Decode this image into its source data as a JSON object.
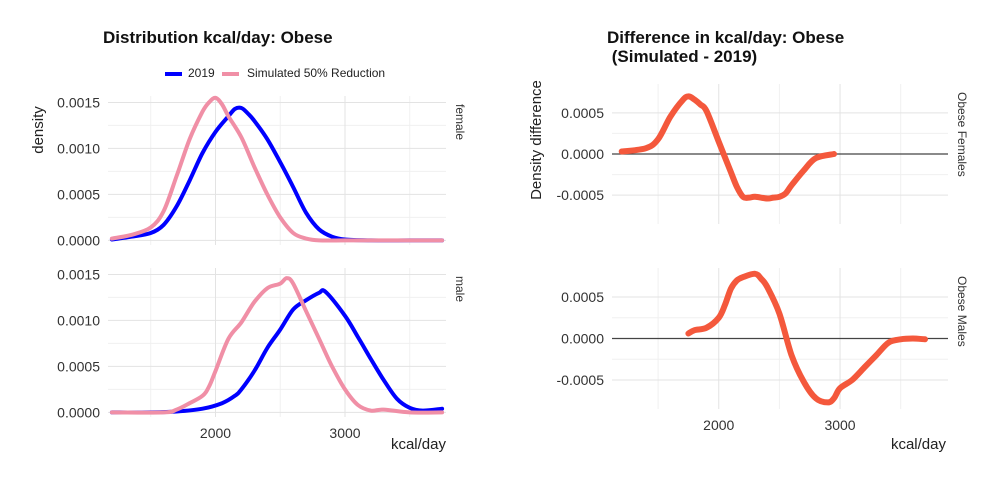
{
  "left": {
    "title": "Distribution kcal/day: Obese",
    "xlabel": "kcal/day",
    "ylabel": "density",
    "legend": [
      {
        "label": "2019",
        "color": "#0000ff"
      },
      {
        "label": "Simulated 50% Reduction",
        "color": "#f08fa6"
      }
    ]
  },
  "right": {
    "title_line1": "Difference in kcal/day: Obese",
    "title_line2": " (Simulated - 2019)",
    "xlabel": "kcal/day",
    "ylabel": "Density difference"
  },
  "chart_data": [
    {
      "type": "line",
      "title": "Distribution kcal/day: Obese",
      "xlabel": "kcal/day",
      "ylabel": "density",
      "xlim": [
        1170,
        3780
      ],
      "x_ticks": [
        2000,
        3000
      ],
      "facets": [
        {
          "label": "female",
          "ylim": [
            -5e-05,
            0.00157
          ],
          "y_ticks": [
            0,
            0.0005,
            0.001,
            0.0015
          ],
          "y_tick_labels": [
            "0.0000",
            "0.0005",
            "0.0010",
            "0.0015"
          ],
          "series": [
            {
              "name": "2019",
              "color": "#0000ff",
              "x": [
                1200,
                1350,
                1500,
                1600,
                1700,
                1800,
                1900,
                2000,
                2100,
                2150,
                2200,
                2250,
                2300,
                2400,
                2500,
                2600,
                2700,
                2800,
                2900,
                3000,
                3200,
                3500,
                3750
              ],
              "y": [
                1e-05,
                4e-05,
                8e-05,
                0.00017,
                0.00037,
                0.00065,
                0.00095,
                0.00118,
                0.00135,
                0.00143,
                0.00144,
                0.00138,
                0.0013,
                0.0011,
                0.00085,
                0.00058,
                0.0003,
                0.00012,
                4e-05,
                1e-05,
                0.0,
                0.0,
                0.0
              ]
            },
            {
              "name": "Simulated 50% Reduction",
              "color": "#f08fa6",
              "x": [
                1200,
                1350,
                1500,
                1600,
                1700,
                1800,
                1900,
                1950,
                2000,
                2050,
                2100,
                2200,
                2300,
                2400,
                2500,
                2600,
                2700,
                2800,
                3000,
                3200,
                3500,
                3750
              ],
              "y": [
                2e-05,
                6e-05,
                0.00014,
                0.00032,
                0.0007,
                0.0011,
                0.0014,
                0.0015,
                0.00155,
                0.00148,
                0.00135,
                0.00112,
                0.0008,
                0.0005,
                0.00025,
                8e-05,
                2e-05,
                0.0,
                0.0,
                0.0,
                0.0,
                0.0
              ]
            }
          ]
        },
        {
          "label": "male",
          "ylim": [
            -5e-05,
            0.00157
          ],
          "y_ticks": [
            0,
            0.0005,
            0.001,
            0.0015
          ],
          "y_tick_labels": [
            "0.0000",
            "0.0005",
            "0.0010",
            "0.0015"
          ],
          "series": [
            {
              "name": "2019",
              "color": "#0000ff",
              "x": [
                1200,
                1500,
                1700,
                1900,
                2050,
                2150,
                2200,
                2300,
                2400,
                2500,
                2600,
                2700,
                2800,
                2850,
                3000,
                3100,
                3200,
                3300,
                3400,
                3500,
                3600,
                3750
              ],
              "y": [
                0.0,
                0.0,
                1e-05,
                4e-05,
                0.0001,
                0.00018,
                0.00025,
                0.00045,
                0.0007,
                0.0009,
                0.00112,
                0.00122,
                0.0013,
                0.00131,
                0.00105,
                0.00082,
                0.00058,
                0.00035,
                0.00015,
                5e-05,
                2e-05,
                4e-05
              ]
            },
            {
              "name": "Simulated 50% Reduction",
              "color": "#f08fa6",
              "x": [
                1200,
                1600,
                1700,
                1800,
                1900,
                1950,
                2000,
                2100,
                2200,
                2300,
                2400,
                2500,
                2550,
                2600,
                2700,
                2800,
                2900,
                3000,
                3100,
                3200,
                3300,
                3500,
                3750
              ],
              "y": [
                0.0,
                0.0,
                3e-05,
                0.0001,
                0.00018,
                0.00028,
                0.00045,
                0.0008,
                0.00098,
                0.0012,
                0.00135,
                0.0014,
                0.00146,
                0.0014,
                0.0011,
                0.0008,
                0.0005,
                0.00025,
                8e-05,
                2e-05,
                3e-05,
                0.0,
                0.0
              ]
            }
          ]
        }
      ]
    },
    {
      "type": "line",
      "title": "Difference in kcal/day: Obese (Simulated - 2019)",
      "xlabel": "kcal/day",
      "ylabel": "Density difference",
      "xlim": [
        1120,
        3890
      ],
      "x_ticks": [
        2000,
        3000
      ],
      "line_color": "#f4583c",
      "reference_line": 0,
      "facets": [
        {
          "label": "Obese Females",
          "ylim": [
            -0.00085,
            0.00085
          ],
          "y_ticks": [
            -0.0005,
            0,
            0.0005
          ],
          "y_tick_labels": [
            "-0.0005",
            "0.0000",
            "0.0005"
          ],
          "x": [
            1200,
            1400,
            1500,
            1600,
            1700,
            1750,
            1800,
            1850,
            1900,
            2000,
            2100,
            2150,
            2200,
            2250,
            2300,
            2400,
            2450,
            2500,
            2550,
            2600,
            2700,
            2800,
            2950
          ],
          "y": [
            3e-05,
            7e-05,
            0.00018,
            0.00045,
            0.00065,
            0.0007,
            0.00066,
            0.0006,
            0.00052,
            0.00015,
            -0.00022,
            -0.0004,
            -0.00052,
            -0.00053,
            -0.00052,
            -0.00054,
            -0.00053,
            -0.00052,
            -0.00048,
            -0.00038,
            -0.0002,
            -5e-05,
            0.0
          ]
        },
        {
          "label": "Obese Males",
          "ylim": [
            -0.00085,
            0.00085
          ],
          "y_ticks": [
            -0.0005,
            0,
            0.0005
          ],
          "y_tick_labels": [
            "-0.0005",
            "0.0000",
            "0.0005"
          ],
          "x": [
            1750,
            1800,
            1900,
            2000,
            2050,
            2100,
            2150,
            2200,
            2300,
            2350,
            2400,
            2500,
            2600,
            2700,
            2800,
            2900,
            2950,
            3000,
            3100,
            3200,
            3300,
            3400,
            3500,
            3600,
            3700
          ],
          "y": [
            6e-05,
            0.0001,
            0.00013,
            0.00025,
            0.0004,
            0.0006,
            0.0007,
            0.00074,
            0.00078,
            0.00072,
            0.00062,
            0.0003,
            -0.0002,
            -0.00052,
            -0.00072,
            -0.00077,
            -0.00072,
            -0.0006,
            -0.0005,
            -0.00035,
            -0.0002,
            -5e-05,
            -1e-05,
            0.0,
            -1e-05
          ]
        }
      ]
    }
  ]
}
